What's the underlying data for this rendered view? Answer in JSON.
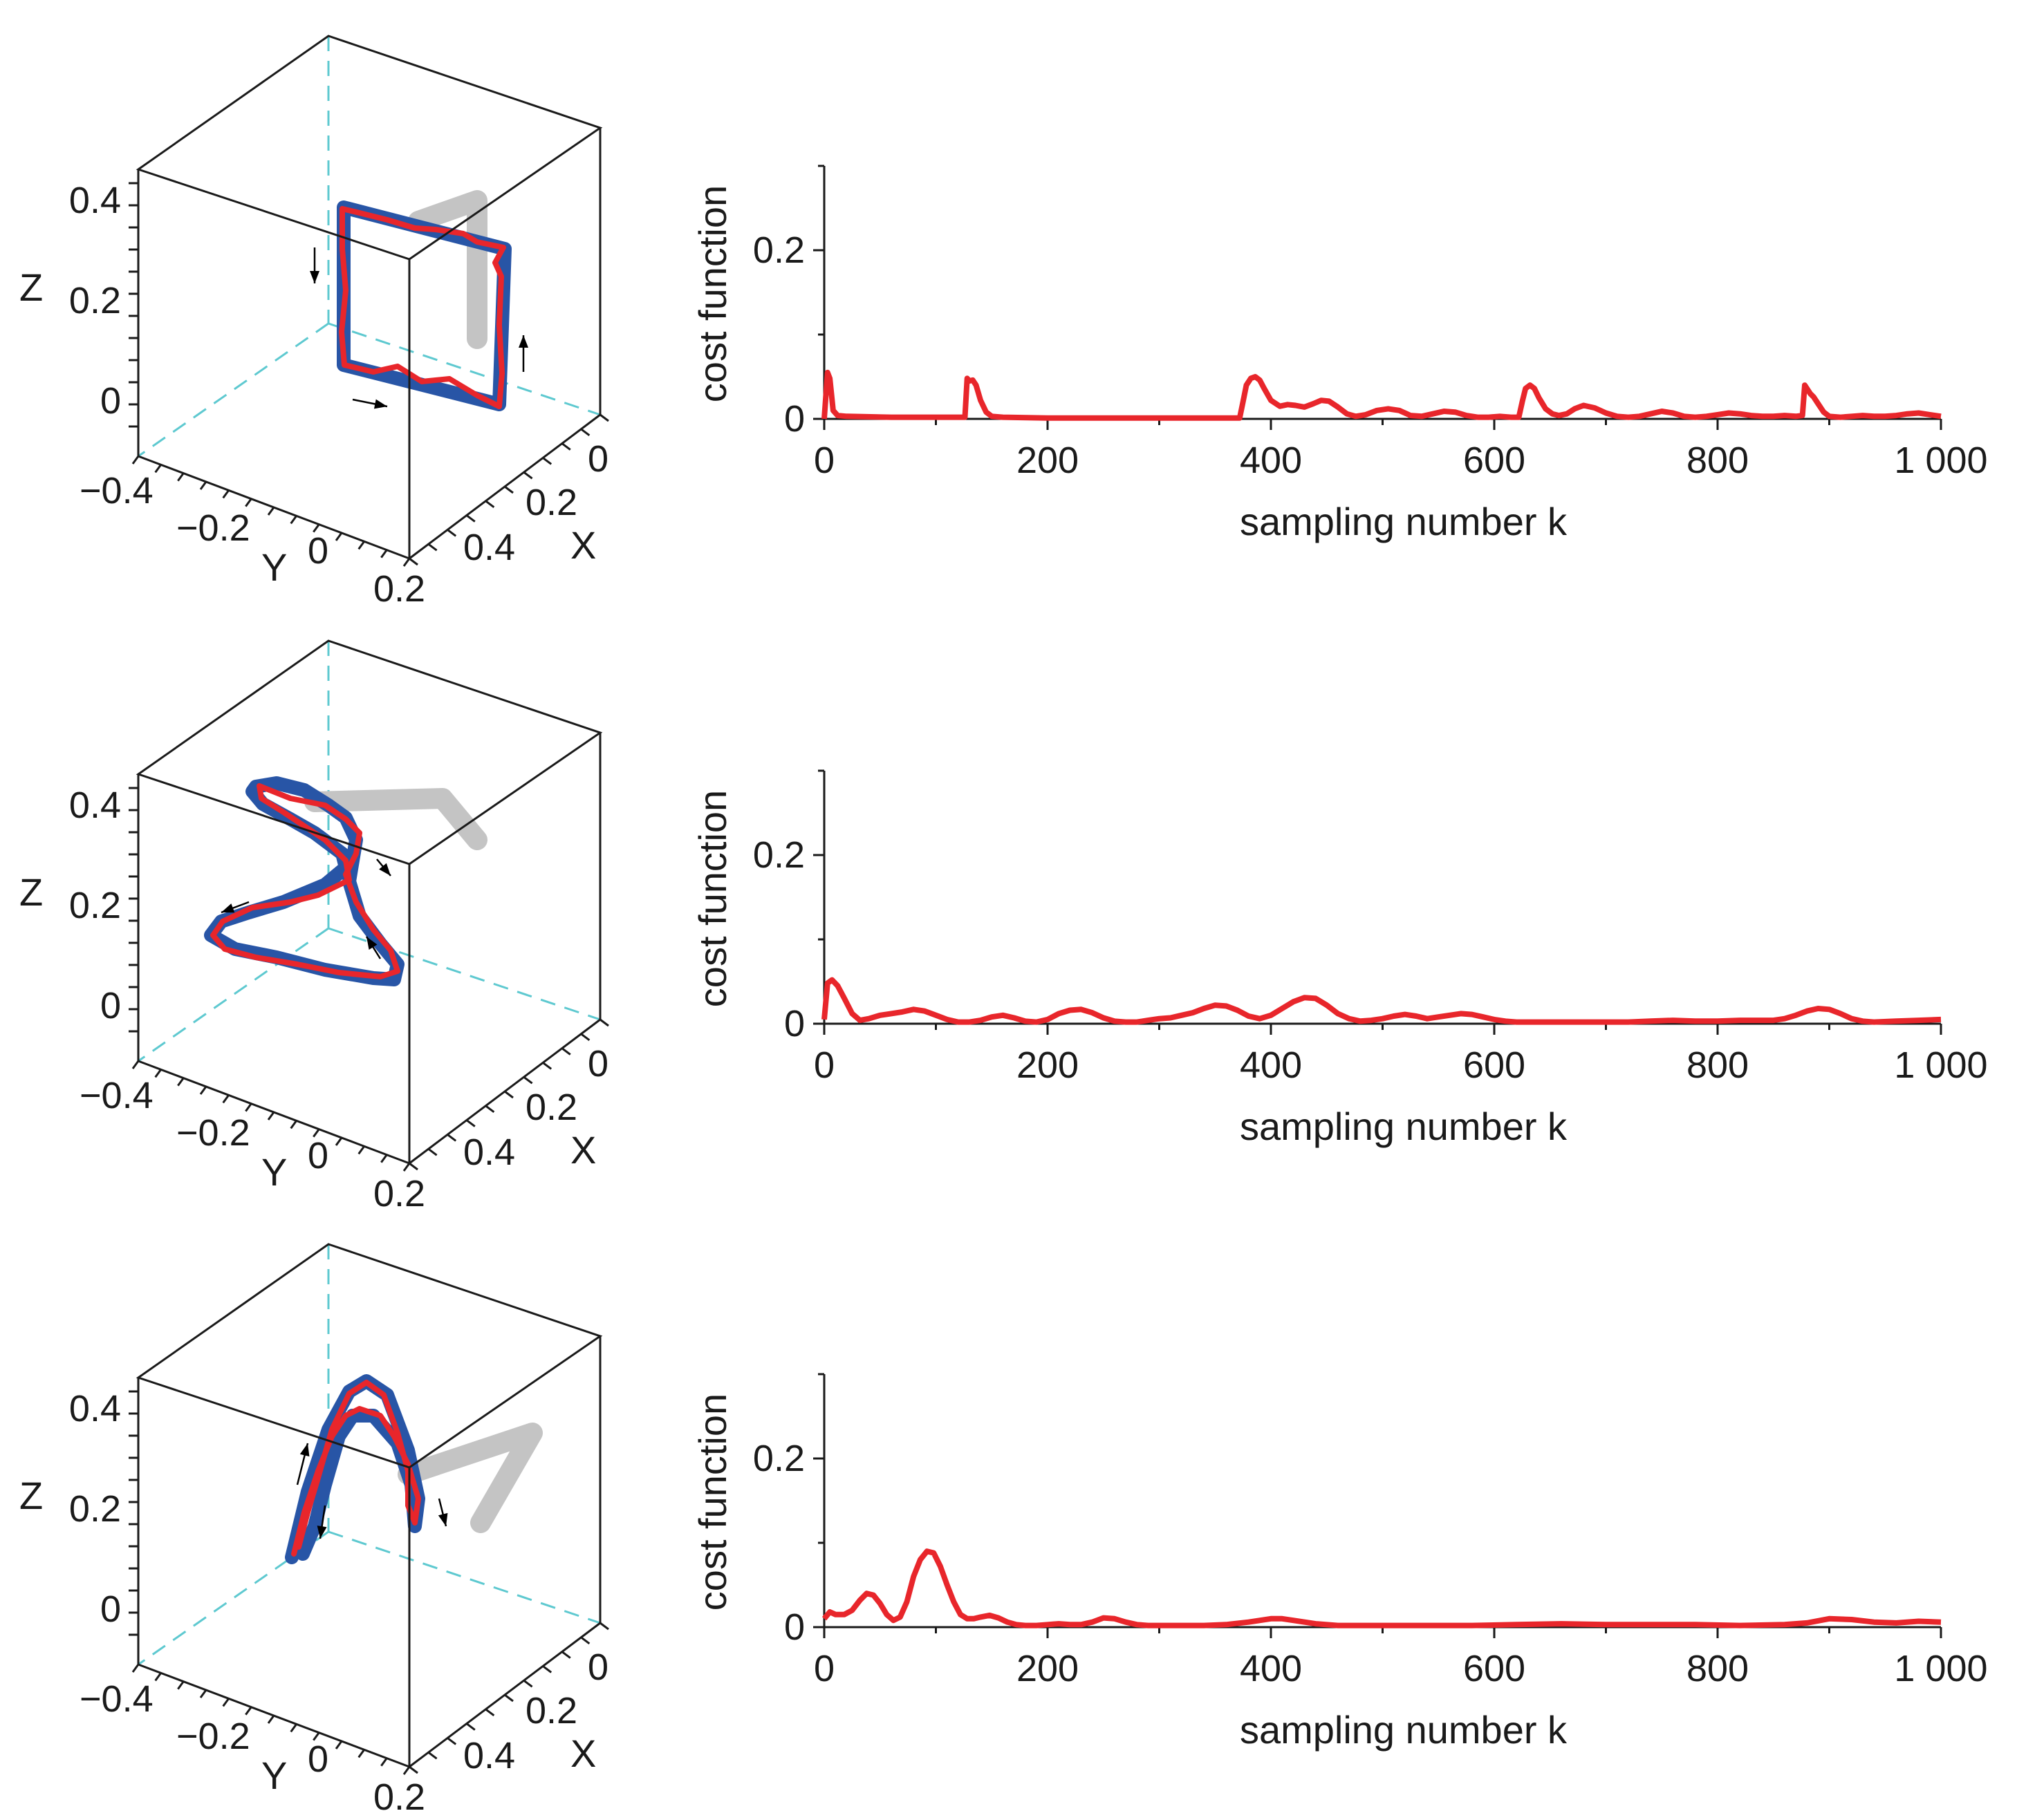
{
  "figure": {
    "colors": {
      "reference": "#2855a6",
      "actual": "#e8262b",
      "robot_arm": "#c4c4c4",
      "cube_dashed": "#5ec9d0",
      "cost": "#e8262b"
    }
  },
  "panels": [
    {
      "trajectory_3d": {
        "type": "3d-trajectory",
        "shape": "square",
        "axes": {
          "x": {
            "label": "X",
            "ticks": [
              "0",
              "0.2",
              "0.4"
            ]
          },
          "y": {
            "label": "Y",
            "ticks": [
              "−0.4",
              "−0.2",
              "0",
              "0.2"
            ]
          },
          "z": {
            "label": "Z",
            "ticks": [
              "0.4",
              "0.2",
              "0"
            ]
          }
        }
      },
      "chart_data": {
        "type": "line",
        "title": "",
        "xlabel": "sampling number k",
        "ylabel": "cost function",
        "xlim": [
          0,
          1000
        ],
        "ylim": [
          0,
          0.3
        ],
        "x_ticks": [
          0,
          200,
          400,
          600,
          800,
          1000
        ],
        "x_tick_labels": [
          "0",
          "200",
          "400",
          "600",
          "800",
          "1 000"
        ],
        "y_ticks": [
          0,
          0.2
        ],
        "y_tick_labels": [
          "0",
          "0.2"
        ],
        "series": [
          {
            "name": "cost function",
            "x": [
              0,
              3,
              5,
              8,
              12,
              20,
              60,
              100,
              126,
              128,
              130,
              133,
              136,
              140,
              145,
              150,
              160,
              200,
              300,
              372,
              375,
              378,
              382,
              386,
              390,
              394,
              400,
              408,
              415,
              422,
              430,
              438,
              445,
              452,
              460,
              468,
              476,
              485,
              495,
              505,
              515,
              525,
              535,
              545,
              555,
              565,
              575,
              585,
              595,
              605,
              615,
              622,
              625,
              628,
              632,
              636,
              640,
              646,
              652,
              658,
              665,
              672,
              680,
              690,
              700,
              710,
              720,
              730,
              740,
              750,
              760,
              770,
              780,
              790,
              800,
              810,
              820,
              830,
              840,
              850,
              860,
              870,
              876,
              878,
              880,
              883,
              886,
              890,
              895,
              900,
              910,
              920,
              930,
              940,
              950,
              960,
              970,
              980,
              990,
              1000
            ],
            "values": [
              0,
              0.055,
              0.048,
              0.01,
              0.004,
              0.003,
              0.002,
              0.002,
              0.002,
              0.048,
              0.045,
              0.046,
              0.04,
              0.022,
              0.008,
              0.003,
              0.002,
              0.001,
              0.001,
              0.001,
              0.02,
              0.04,
              0.048,
              0.05,
              0.046,
              0.036,
              0.022,
              0.015,
              0.017,
              0.016,
              0.014,
              0.018,
              0.022,
              0.021,
              0.014,
              0.006,
              0.003,
              0.005,
              0.01,
              0.012,
              0.01,
              0.004,
              0.003,
              0.006,
              0.009,
              0.008,
              0.004,
              0.002,
              0.002,
              0.003,
              0.002,
              0.002,
              0.02,
              0.036,
              0.04,
              0.036,
              0.025,
              0.012,
              0.006,
              0.004,
              0.006,
              0.012,
              0.016,
              0.013,
              0.007,
              0.003,
              0.002,
              0.003,
              0.006,
              0.009,
              0.007,
              0.003,
              0.002,
              0.003,
              0.005,
              0.007,
              0.006,
              0.004,
              0.003,
              0.003,
              0.004,
              0.003,
              0.004,
              0.04,
              0.036,
              0.03,
              0.026,
              0.018,
              0.008,
              0.003,
              0.002,
              0.003,
              0.004,
              0.003,
              0.003,
              0.004,
              0.006,
              0.007,
              0.005,
              0.003
            ]
          }
        ]
      }
    },
    {
      "trajectory_3d": {
        "type": "3d-trajectory",
        "shape": "figure-eight",
        "axes": {
          "x": {
            "label": "X",
            "ticks": [
              "0",
              "0.2",
              "0.4"
            ]
          },
          "y": {
            "label": "Y",
            "ticks": [
              "−0.4",
              "−0.2",
              "0",
              "0.2"
            ]
          },
          "z": {
            "label": "Z",
            "ticks": [
              "0.4",
              "0.2",
              "0"
            ]
          }
        }
      },
      "chart_data": {
        "type": "line",
        "title": "",
        "xlabel": "sampling number k",
        "ylabel": "cost function",
        "xlim": [
          0,
          1000
        ],
        "ylim": [
          0,
          0.3
        ],
        "x_ticks": [
          0,
          200,
          400,
          600,
          800,
          1000
        ],
        "x_tick_labels": [
          "0",
          "200",
          "400",
          "600",
          "800",
          "1 000"
        ],
        "y_ticks": [
          0,
          0.2
        ],
        "y_tick_labels": [
          "0",
          "0.2"
        ],
        "series": [
          {
            "name": "cost function",
            "x": [
              0,
              3,
              7,
              12,
              18,
              25,
              32,
              40,
              50,
              60,
              70,
              80,
              90,
              100,
              110,
              120,
              130,
              140,
              150,
              160,
              170,
              180,
              190,
              200,
              210,
              220,
              230,
              240,
              250,
              260,
              270,
              280,
              290,
              300,
              310,
              320,
              330,
              340,
              350,
              360,
              370,
              380,
              390,
              400,
              410,
              420,
              430,
              440,
              450,
              460,
              470,
              480,
              490,
              500,
              510,
              520,
              530,
              540,
              550,
              560,
              570,
              580,
              590,
              600,
              610,
              620,
              640,
              660,
              680,
              700,
              720,
              740,
              760,
              780,
              800,
              820,
              840,
              850,
              860,
              870,
              880,
              890,
              900,
              910,
              920,
              930,
              940,
              960,
              980,
              1000
            ],
            "values": [
              0.005,
              0.048,
              0.052,
              0.045,
              0.03,
              0.012,
              0.004,
              0.006,
              0.01,
              0.012,
              0.014,
              0.017,
              0.015,
              0.01,
              0.005,
              0.002,
              0.002,
              0.004,
              0.008,
              0.01,
              0.007,
              0.003,
              0.002,
              0.005,
              0.012,
              0.016,
              0.017,
              0.013,
              0.007,
              0.003,
              0.002,
              0.002,
              0.004,
              0.006,
              0.007,
              0.01,
              0.013,
              0.018,
              0.022,
              0.021,
              0.016,
              0.009,
              0.006,
              0.01,
              0.018,
              0.026,
              0.031,
              0.03,
              0.022,
              0.012,
              0.006,
              0.003,
              0.004,
              0.006,
              0.009,
              0.011,
              0.009,
              0.006,
              0.008,
              0.01,
              0.012,
              0.011,
              0.008,
              0.005,
              0.003,
              0.002,
              0.002,
              0.002,
              0.002,
              0.002,
              0.002,
              0.003,
              0.004,
              0.003,
              0.003,
              0.004,
              0.004,
              0.004,
              0.006,
              0.01,
              0.015,
              0.018,
              0.017,
              0.012,
              0.006,
              0.003,
              0.002,
              0.003,
              0.004,
              0.005
            ]
          }
        ]
      }
    },
    {
      "trajectory_3d": {
        "type": "3d-trajectory",
        "shape": "double-arch",
        "axes": {
          "x": {
            "label": "X",
            "ticks": [
              "0",
              "0.2",
              "0.4"
            ]
          },
          "y": {
            "label": "Y",
            "ticks": [
              "−0.4",
              "−0.2",
              "0",
              "0.2"
            ]
          },
          "z": {
            "label": "Z",
            "ticks": [
              "0.4",
              "0.2",
              "0"
            ]
          }
        }
      },
      "chart_data": {
        "type": "line",
        "title": "",
        "xlabel": "sampling number k",
        "ylabel": "cost function",
        "xlim": [
          0,
          1000
        ],
        "ylim": [
          0,
          0.3
        ],
        "x_ticks": [
          0,
          200,
          400,
          600,
          800,
          1000
        ],
        "x_tick_labels": [
          "0",
          "200",
          "400",
          "600",
          "800",
          "1 000"
        ],
        "y_ticks": [
          0,
          0.2
        ],
        "y_tick_labels": [
          "0",
          "0.2"
        ],
        "series": [
          {
            "name": "cost function",
            "x": [
              0,
              5,
              10,
              18,
              25,
              32,
              38,
              44,
              50,
              56,
              62,
              68,
              74,
              80,
              86,
              92,
              98,
              104,
              110,
              116,
              122,
              128,
              134,
              140,
              148,
              156,
              164,
              172,
              180,
              190,
              200,
              210,
              220,
              230,
              240,
              250,
              260,
              270,
              280,
              290,
              300,
              320,
              340,
              360,
              380,
              400,
              410,
              420,
              440,
              460,
              480,
              500,
              540,
              580,
              620,
              660,
              700,
              740,
              760,
              780,
              820,
              860,
              880,
              900,
              920,
              940,
              960,
              980,
              1000
            ],
            "values": [
              0.01,
              0.018,
              0.015,
              0.015,
              0.02,
              0.032,
              0.04,
              0.038,
              0.028,
              0.015,
              0.008,
              0.012,
              0.03,
              0.06,
              0.08,
              0.09,
              0.088,
              0.072,
              0.05,
              0.03,
              0.015,
              0.01,
              0.01,
              0.012,
              0.014,
              0.011,
              0.006,
              0.003,
              0.002,
              0.002,
              0.003,
              0.004,
              0.003,
              0.003,
              0.006,
              0.011,
              0.01,
              0.006,
              0.003,
              0.002,
              0.002,
              0.002,
              0.002,
              0.003,
              0.006,
              0.01,
              0.01,
              0.008,
              0.004,
              0.002,
              0.002,
              0.002,
              0.002,
              0.002,
              0.003,
              0.004,
              0.003,
              0.003,
              0.003,
              0.003,
              0.002,
              0.003,
              0.005,
              0.01,
              0.009,
              0.006,
              0.005,
              0.007,
              0.006
            ]
          }
        ]
      }
    }
  ]
}
